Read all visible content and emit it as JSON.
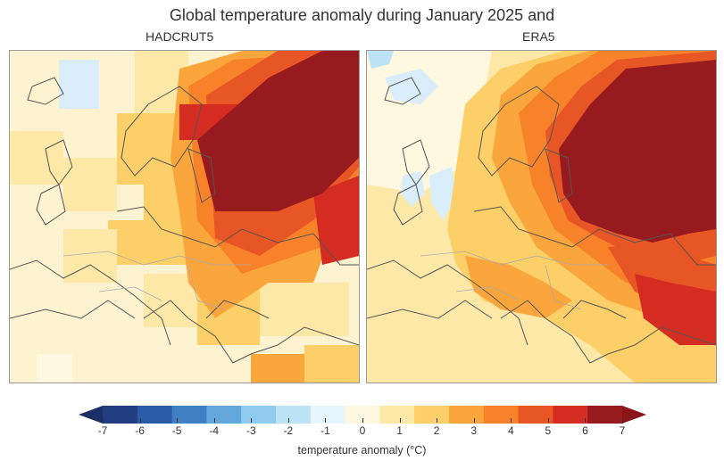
{
  "title": "Global temperature anomaly during January 2025 and",
  "panels": [
    {
      "name": "HADCRUT5"
    },
    {
      "name": "ERA5"
    }
  ],
  "colorbar": {
    "label": "temperature anomaly (°C)",
    "ticks": [
      "-7",
      "-6",
      "-5",
      "-4",
      "-3",
      "-2",
      "-1",
      "0",
      "1",
      "2",
      "3",
      "4",
      "5",
      "6",
      "7"
    ],
    "colors": [
      "#1f3d80",
      "#2a5ba8",
      "#3f7fc2",
      "#64a7dc",
      "#8fcbee",
      "#bde3f6",
      "#e6f4fc",
      "#fff8e0",
      "#fde8a8",
      "#fccf69",
      "#fba63c",
      "#f7822a",
      "#e85626",
      "#d52c22",
      "#961a1e"
    ],
    "extend_low_color": "#1b2f66",
    "extend_high_color": "#8b1419"
  }
}
